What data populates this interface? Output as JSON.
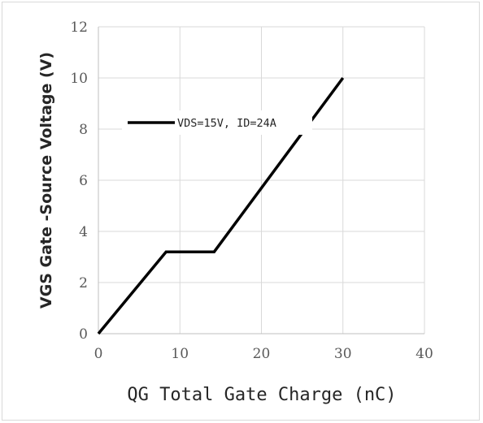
{
  "chart_data": {
    "type": "line",
    "title": "",
    "xlabel": "QG Total Gate Charge (nC)",
    "ylabel": "VGS Gate -Source Voltage (V)",
    "xlim": [
      0,
      40
    ],
    "ylim": [
      0,
      12
    ],
    "xticks": [
      0,
      10,
      20,
      30,
      40
    ],
    "yticks": [
      0,
      2,
      4,
      6,
      8,
      10,
      12
    ],
    "grid": true,
    "legend_position": "upper-left",
    "series": [
      {
        "name": "VDS=15V, ID=24A",
        "color": "#000000",
        "x": [
          0,
          8.3,
          14.2,
          30
        ],
        "y": [
          0,
          3.2,
          3.2,
          10
        ]
      }
    ]
  }
}
